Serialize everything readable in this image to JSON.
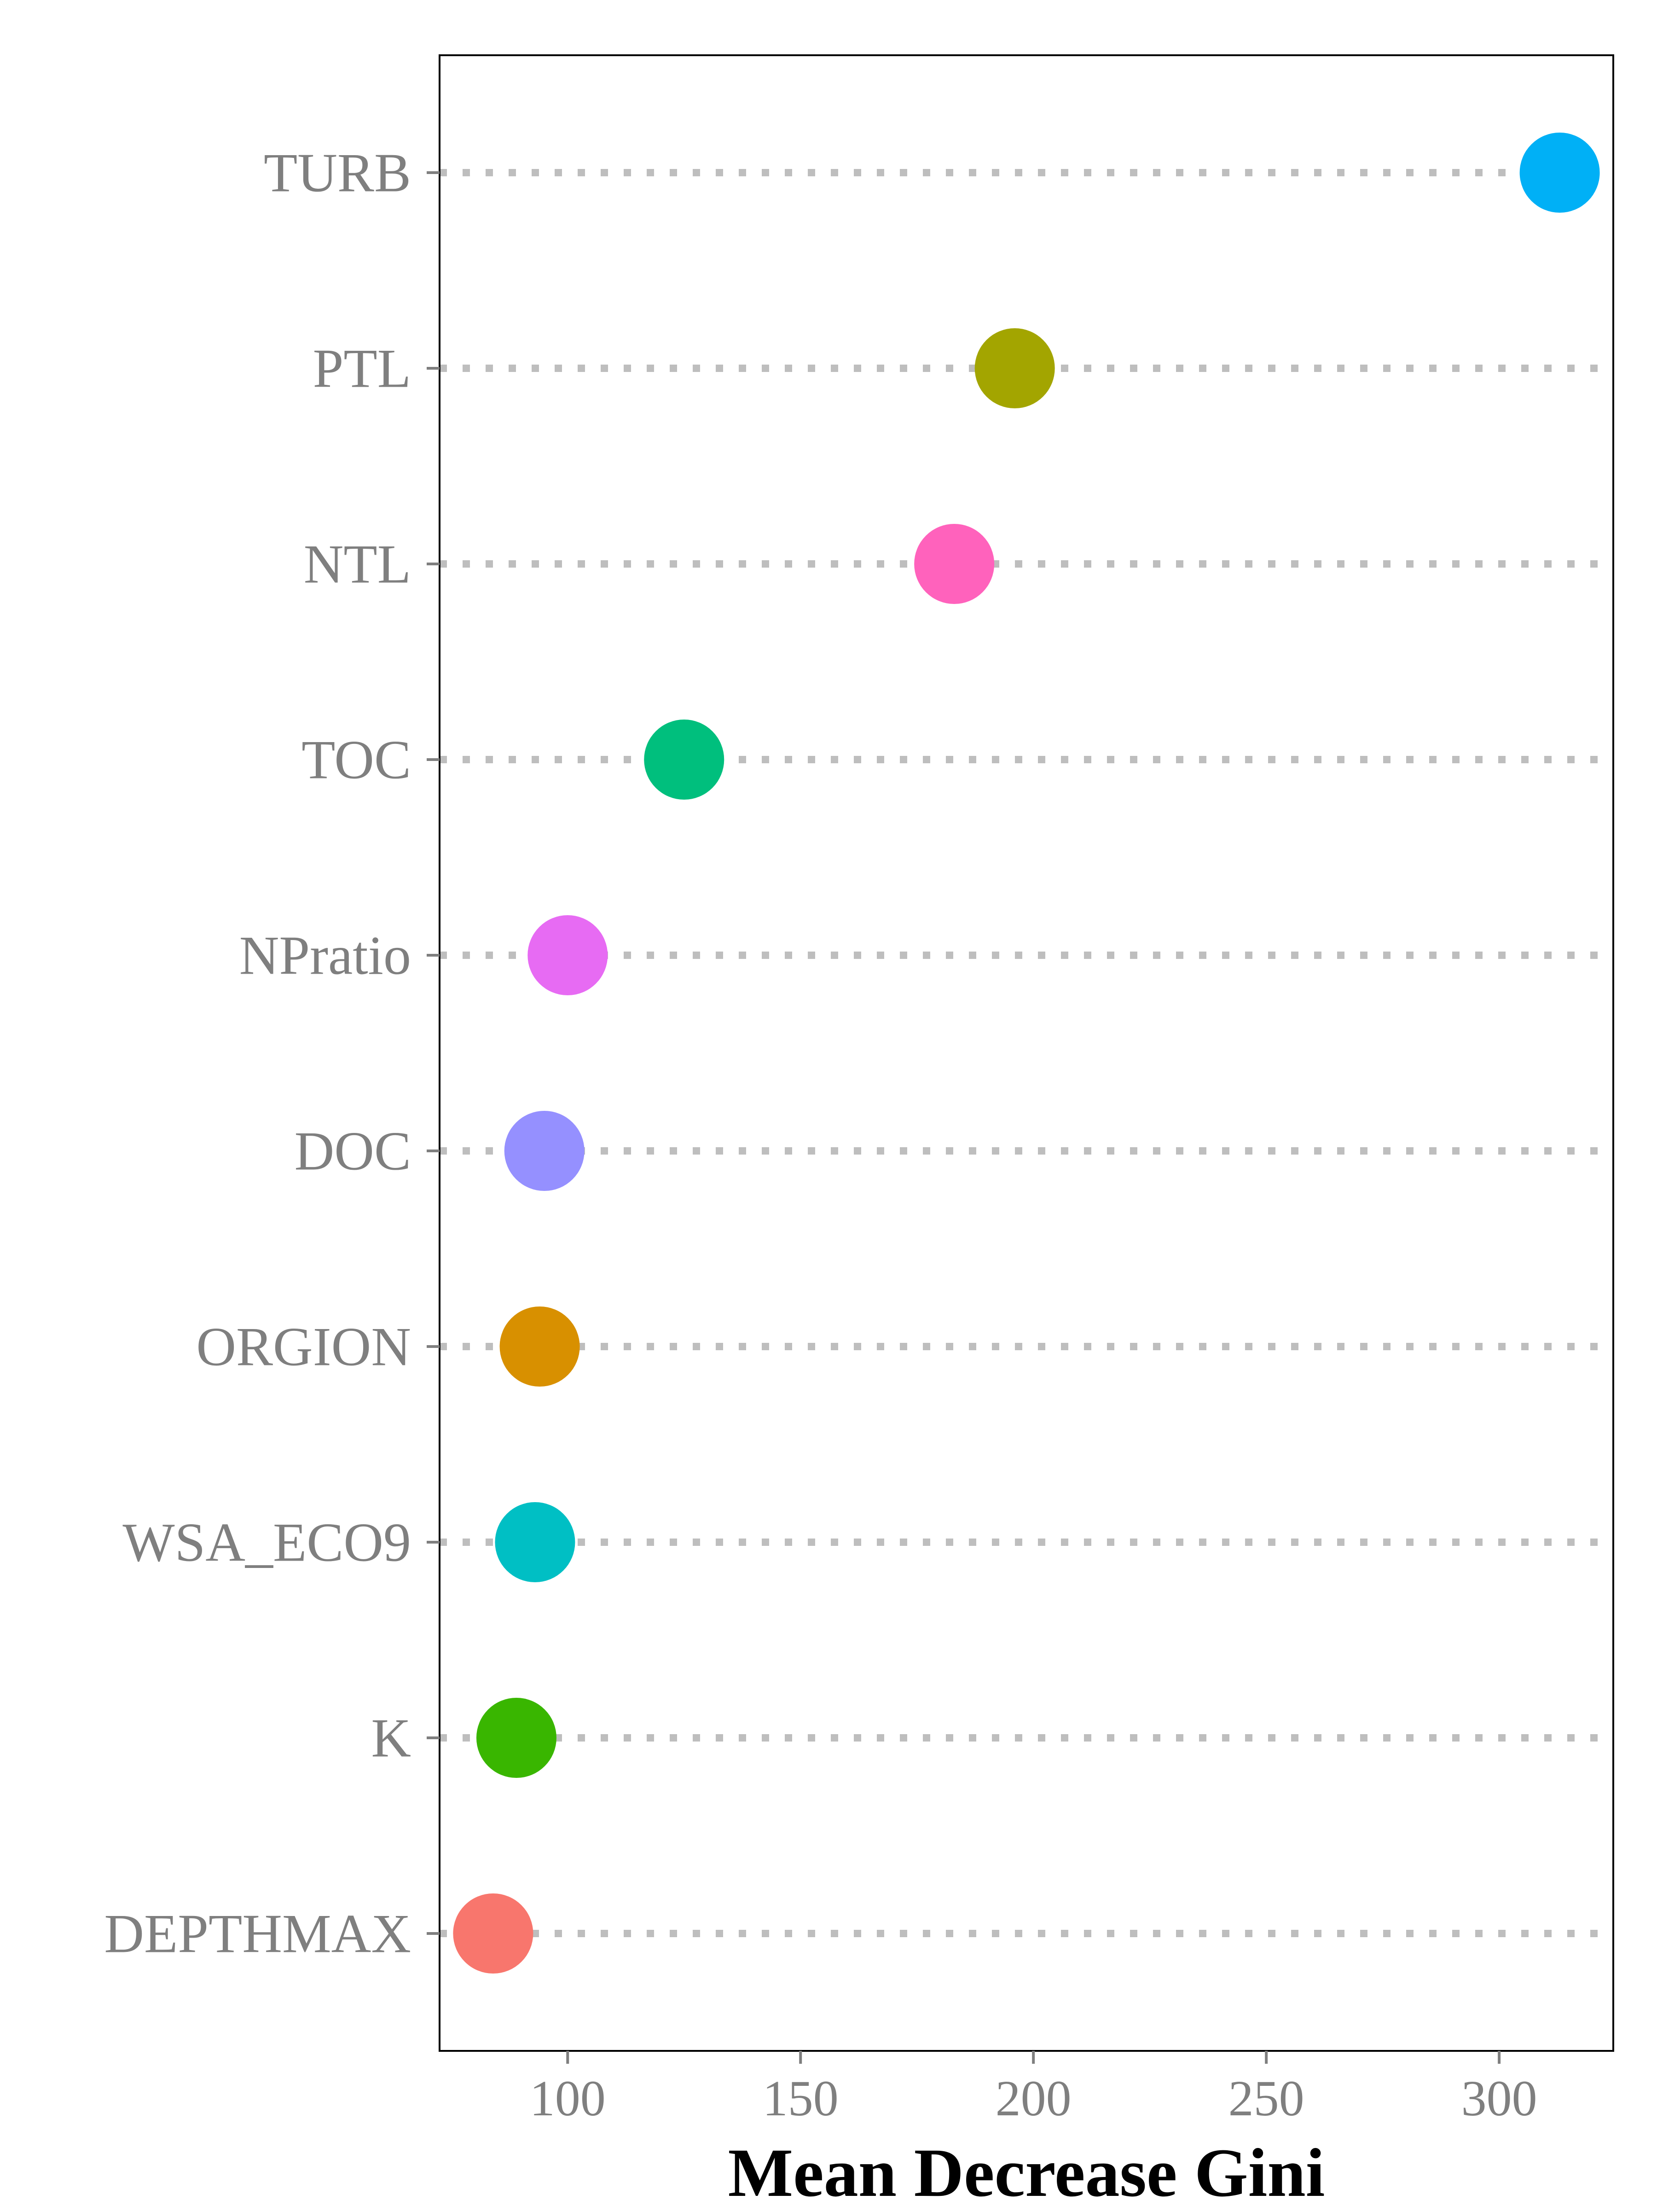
{
  "chart_data": {
    "type": "scatter",
    "variant": "dot-plot",
    "title": "",
    "xlabel": "Mean Decrease Gini",
    "ylabel": "",
    "xlim": [
      72.5,
      324.5
    ],
    "xticks": [
      100,
      150,
      200,
      250,
      300
    ],
    "grid": false,
    "legend": "none",
    "leader_lines": "dotted",
    "points": [
      {
        "label": "TURB",
        "value": 313,
        "color": "#00B0F6"
      },
      {
        "label": "PTL",
        "value": 196,
        "color": "#A3A500"
      },
      {
        "label": "NTL",
        "value": 183,
        "color": "#FF62BC"
      },
      {
        "label": "TOC",
        "value": 125,
        "color": "#00BF7D"
      },
      {
        "label": "NPratio",
        "value": 100,
        "color": "#E76BF3"
      },
      {
        "label": "DOC",
        "value": 95,
        "color": "#9590FF"
      },
      {
        "label": "ORGION",
        "value": 94,
        "color": "#D89000"
      },
      {
        "label": "WSA_ECO9",
        "value": 93,
        "color": "#00BFC4"
      },
      {
        "label": "K",
        "value": 89,
        "color": "#39B600"
      },
      {
        "label": "DEPTHMAX",
        "value": 84,
        "color": "#F8766D"
      }
    ]
  }
}
